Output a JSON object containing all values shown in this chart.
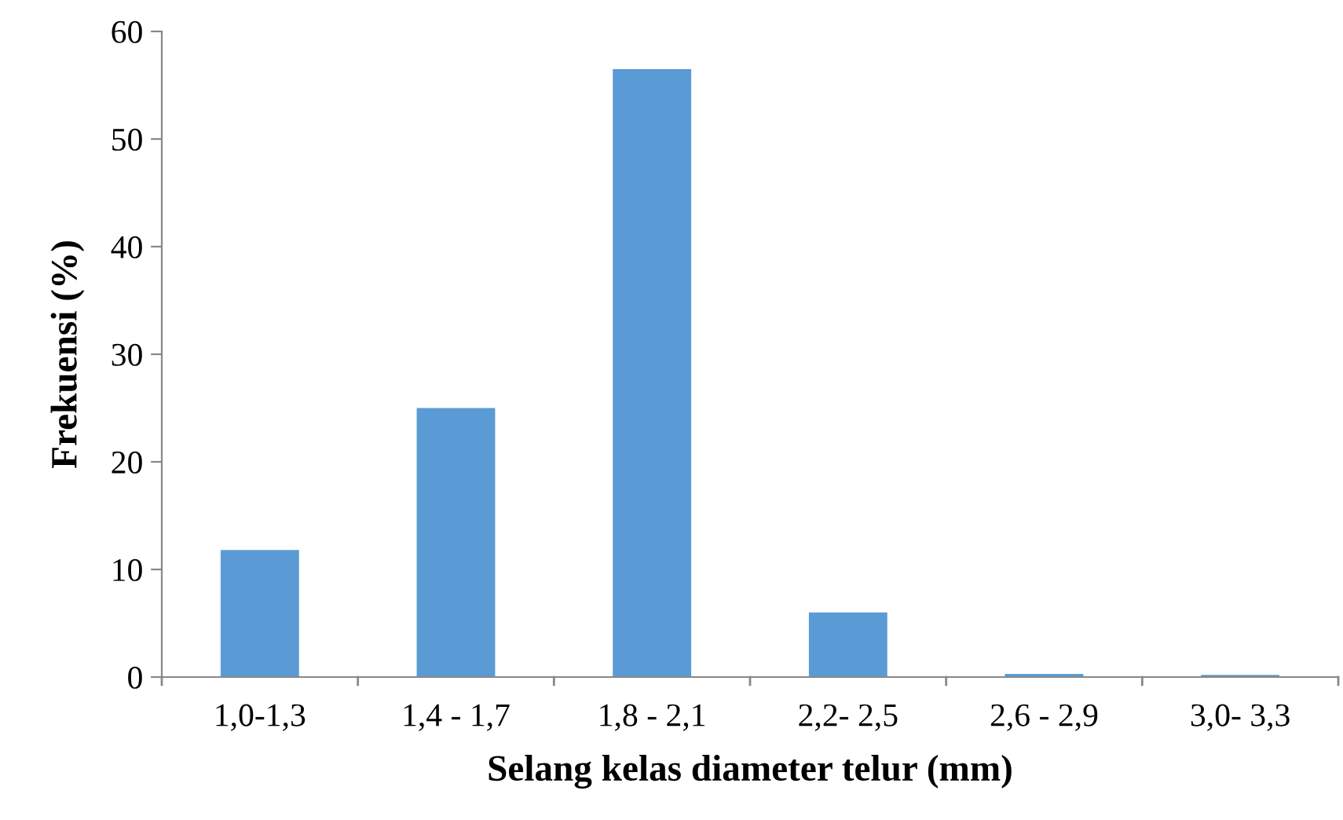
{
  "chart_data": {
    "type": "bar",
    "xlabel": "Selang kelas diameter telur (mm)",
    "ylabel": "Frekuensi (%)",
    "categories": [
      "1,0-1,3",
      "1,4 - 1,7",
      "1,8 - 2,1",
      "2,2- 2,5",
      "2,6 - 2,9",
      "3,0- 3,3"
    ],
    "values": [
      11.8,
      25.0,
      56.5,
      6.0,
      0.3,
      0.2
    ],
    "color": "#5b9bd5",
    "ylim": [
      0,
      60
    ],
    "yticks": [
      0,
      10,
      20,
      30,
      40,
      50,
      60
    ],
    "grid": false,
    "legend": false
  }
}
